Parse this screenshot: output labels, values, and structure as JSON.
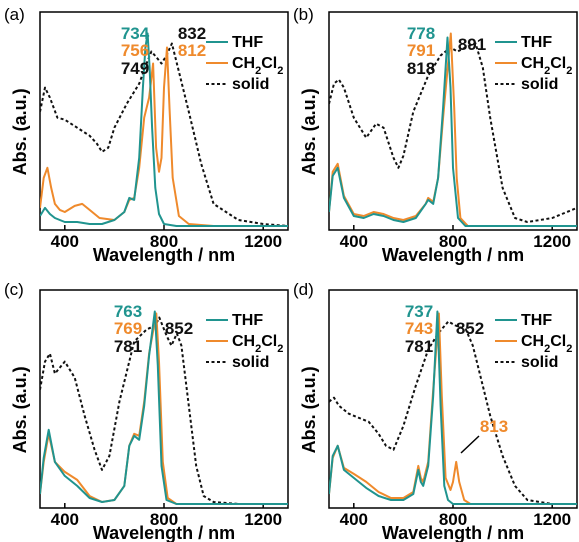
{
  "colors": {
    "thf": "#20948f",
    "ch2cl2": "#ef8a2c",
    "solid": "#111111"
  },
  "chart_data": [
    {
      "panel": "(a)",
      "type": "line",
      "xlabel": "Wavelength / nm",
      "ylabel": "Abs. (a.u.)",
      "xlim": [
        300,
        1300
      ],
      "xticks": [
        400,
        800,
        1200
      ],
      "legend": [
        "THF",
        "CH2Cl2",
        "solid"
      ],
      "peak_labels": [
        {
          "text": "734",
          "series": "THF"
        },
        {
          "text": "756",
          "series": "CH2Cl2"
        },
        {
          "text": "749",
          "series": "solid"
        },
        {
          "text": "832",
          "series": "solid"
        },
        {
          "text": "812",
          "series": "CH2Cl2"
        }
      ],
      "series": [
        {
          "name": "THF",
          "style": "solid",
          "x": [
            300,
            320,
            340,
            360,
            380,
            400,
            450,
            500,
            550,
            600,
            640,
            660,
            680,
            700,
            715,
            725,
            734,
            742,
            752,
            765,
            780,
            800,
            850,
            900,
            1000,
            1300
          ],
          "y": [
            0.06,
            0.1,
            0.07,
            0.05,
            0.04,
            0.03,
            0.03,
            0.02,
            0.02,
            0.04,
            0.08,
            0.15,
            0.14,
            0.35,
            0.7,
            0.9,
            0.97,
            0.8,
            0.5,
            0.2,
            0.07,
            0.02,
            0.01,
            0.01,
            0.01,
            0.01
          ]
        },
        {
          "name": "CH2Cl2",
          "style": "solid",
          "x": [
            300,
            315,
            330,
            345,
            360,
            380,
            400,
            440,
            470,
            500,
            540,
            600,
            640,
            660,
            680,
            700,
            720,
            740,
            756,
            768,
            780,
            790,
            800,
            812,
            822,
            835,
            860,
            900,
            1000,
            1300
          ],
          "y": [
            0.1,
            0.25,
            0.3,
            0.2,
            0.12,
            0.09,
            0.08,
            0.11,
            0.12,
            0.09,
            0.05,
            0.04,
            0.08,
            0.14,
            0.15,
            0.3,
            0.55,
            0.65,
            0.82,
            0.4,
            0.28,
            0.35,
            0.7,
            0.9,
            0.6,
            0.25,
            0.06,
            0.02,
            0.01,
            0.01
          ]
        },
        {
          "name": "solid",
          "style": "dashed",
          "x": [
            300,
            320,
            340,
            370,
            400,
            450,
            500,
            530,
            550,
            575,
            600,
            650,
            700,
            730,
            749,
            770,
            790,
            810,
            832,
            860,
            900,
            950,
            1000,
            1100,
            1200,
            1300
          ],
          "y": [
            0.58,
            0.7,
            0.65,
            0.55,
            0.54,
            0.5,
            0.46,
            0.42,
            0.38,
            0.4,
            0.5,
            0.62,
            0.72,
            0.82,
            0.88,
            0.85,
            0.82,
            0.86,
            0.92,
            0.78,
            0.58,
            0.32,
            0.12,
            0.04,
            0.02,
            0.01
          ]
        }
      ]
    },
    {
      "panel": "(b)",
      "type": "line",
      "xlabel": "Wavelength / nm",
      "ylabel": "Abs. (a.u.)",
      "xlim": [
        300,
        1300
      ],
      "xticks": [
        400,
        800,
        1200
      ],
      "legend": [
        "THF",
        "CH2Cl2",
        "solid"
      ],
      "peak_labels": [
        {
          "text": "778",
          "series": "THF"
        },
        {
          "text": "791",
          "series": "CH2Cl2"
        },
        {
          "text": "818",
          "series": "solid"
        },
        {
          "text": "891",
          "series": "solid"
        }
      ],
      "series": [
        {
          "name": "THF",
          "style": "solid",
          "x": [
            300,
            315,
            335,
            360,
            400,
            440,
            480,
            520,
            560,
            600,
            650,
            690,
            700,
            720,
            740,
            760,
            778,
            790,
            800,
            820,
            850,
            900,
            1000,
            1300
          ],
          "y": [
            0.08,
            0.26,
            0.3,
            0.15,
            0.06,
            0.05,
            0.07,
            0.06,
            0.04,
            0.03,
            0.05,
            0.12,
            0.14,
            0.12,
            0.25,
            0.6,
            0.95,
            0.7,
            0.3,
            0.05,
            0.01,
            0.01,
            0.01,
            0.01
          ]
        },
        {
          "name": "CH2Cl2",
          "style": "solid",
          "x": [
            300,
            315,
            335,
            360,
            400,
            440,
            480,
            520,
            560,
            600,
            650,
            690,
            700,
            720,
            740,
            760,
            791,
            805,
            815,
            830,
            860,
            900,
            1000,
            1300
          ],
          "y": [
            0.08,
            0.28,
            0.32,
            0.16,
            0.07,
            0.06,
            0.08,
            0.07,
            0.05,
            0.04,
            0.06,
            0.12,
            0.15,
            0.13,
            0.25,
            0.55,
            0.97,
            0.6,
            0.25,
            0.05,
            0.01,
            0.01,
            0.01,
            0.01
          ]
        },
        {
          "name": "solid",
          "style": "dashed",
          "x": [
            300,
            320,
            340,
            360,
            400,
            450,
            490,
            520,
            560,
            580,
            600,
            640,
            700,
            750,
            790,
            818,
            850,
            891,
            920,
            950,
            1000,
            1050,
            1100,
            1200,
            1300
          ],
          "y": [
            0.62,
            0.72,
            0.74,
            0.7,
            0.55,
            0.45,
            0.52,
            0.5,
            0.35,
            0.3,
            0.36,
            0.58,
            0.76,
            0.86,
            0.9,
            0.88,
            0.9,
            0.92,
            0.8,
            0.55,
            0.2,
            0.05,
            0.03,
            0.05,
            0.1
          ]
        }
      ]
    },
    {
      "panel": "(c)",
      "type": "line",
      "xlabel": "Wavelength / nm",
      "ylabel": "Abs. (a.u.)",
      "xlim": [
        300,
        1300
      ],
      "xticks": [
        400,
        800,
        1200
      ],
      "legend": [
        "THF",
        "CH2Cl2",
        "solid"
      ],
      "peak_labels": [
        {
          "text": "763",
          "series": "THF"
        },
        {
          "text": "769",
          "series": "CH2Cl2"
        },
        {
          "text": "781",
          "series": "solid"
        },
        {
          "text": "852",
          "series": "solid"
        }
      ],
      "series": [
        {
          "name": "THF",
          "style": "solid",
          "x": [
            300,
            315,
            335,
            360,
            400,
            450,
            500,
            550,
            600,
            640,
            660,
            680,
            700,
            720,
            740,
            763,
            775,
            790,
            810,
            850,
            900,
            1000,
            1300
          ],
          "y": [
            0.06,
            0.24,
            0.38,
            0.22,
            0.15,
            0.1,
            0.04,
            0.02,
            0.03,
            0.1,
            0.3,
            0.35,
            0.33,
            0.5,
            0.75,
            0.97,
            0.7,
            0.2,
            0.03,
            0.01,
            0.01,
            0.01,
            0.01
          ]
        },
        {
          "name": "CH2Cl2",
          "style": "solid",
          "x": [
            300,
            315,
            335,
            360,
            400,
            450,
            500,
            550,
            600,
            640,
            660,
            680,
            700,
            720,
            740,
            769,
            780,
            795,
            815,
            850,
            900,
            1000,
            1300
          ],
          "y": [
            0.06,
            0.22,
            0.36,
            0.22,
            0.17,
            0.13,
            0.05,
            0.02,
            0.03,
            0.1,
            0.3,
            0.36,
            0.35,
            0.52,
            0.76,
            0.96,
            0.72,
            0.22,
            0.04,
            0.01,
            0.01,
            0.01,
            0.01
          ]
        },
        {
          "name": "solid",
          "style": "dashed",
          "x": [
            300,
            320,
            340,
            360,
            400,
            440,
            480,
            520,
            550,
            580,
            620,
            680,
            730,
            765,
            781,
            810,
            830,
            852,
            870,
            900,
            930,
            960,
            1000,
            1100,
            1300
          ],
          "y": [
            0.58,
            0.72,
            0.76,
            0.66,
            0.72,
            0.64,
            0.45,
            0.28,
            0.18,
            0.25,
            0.52,
            0.82,
            0.88,
            0.9,
            0.94,
            0.85,
            0.8,
            0.86,
            0.8,
            0.5,
            0.2,
            0.05,
            0.02,
            0.01,
            0.01
          ]
        }
      ]
    },
    {
      "panel": "(d)",
      "type": "line",
      "xlabel": "Wavelength / nm",
      "ylabel": "Abs. (a.u.)",
      "xlim": [
        300,
        1300
      ],
      "xticks": [
        400,
        800,
        1200
      ],
      "legend": [
        "THF",
        "CH2Cl2",
        "solid"
      ],
      "peak_labels": [
        {
          "text": "737",
          "series": "THF"
        },
        {
          "text": "743",
          "series": "CH2Cl2"
        },
        {
          "text": "781",
          "series": "solid"
        },
        {
          "text": "852",
          "series": "solid"
        },
        {
          "text": "813",
          "series": "CH2Cl2"
        }
      ],
      "series": [
        {
          "name": "THF",
          "style": "solid",
          "x": [
            300,
            315,
            335,
            360,
            400,
            450,
            500,
            550,
            600,
            640,
            660,
            670,
            680,
            700,
            720,
            737,
            750,
            765,
            780,
            800,
            850,
            900,
            1000,
            1300
          ],
          "y": [
            0.06,
            0.25,
            0.3,
            0.18,
            0.14,
            0.09,
            0.05,
            0.03,
            0.03,
            0.06,
            0.18,
            0.12,
            0.1,
            0.2,
            0.55,
            0.97,
            0.5,
            0.1,
            0.03,
            0.01,
            0.01,
            0.01,
            0.01,
            0.01
          ]
        },
        {
          "name": "CH2Cl2",
          "style": "solid",
          "x": [
            300,
            315,
            335,
            360,
            400,
            450,
            500,
            550,
            600,
            640,
            660,
            670,
            680,
            700,
            720,
            743,
            755,
            770,
            790,
            800,
            813,
            825,
            845,
            870,
            900,
            1000,
            1300
          ],
          "y": [
            0.06,
            0.24,
            0.3,
            0.19,
            0.16,
            0.12,
            0.07,
            0.04,
            0.04,
            0.07,
            0.2,
            0.14,
            0.12,
            0.22,
            0.58,
            0.96,
            0.55,
            0.14,
            0.08,
            0.12,
            0.22,
            0.12,
            0.03,
            0.01,
            0.01,
            0.01,
            0.01
          ]
        },
        {
          "name": "solid",
          "style": "dashed",
          "x": [
            300,
            320,
            340,
            380,
            420,
            460,
            500,
            530,
            560,
            600,
            650,
            700,
            740,
            781,
            810,
            852,
            880,
            900,
            950,
            1000,
            1050,
            1100,
            1200,
            1300
          ],
          "y": [
            0.52,
            0.54,
            0.5,
            0.46,
            0.44,
            0.42,
            0.36,
            0.3,
            0.28,
            0.4,
            0.6,
            0.78,
            0.86,
            0.92,
            0.9,
            0.88,
            0.8,
            0.7,
            0.45,
            0.25,
            0.1,
            0.03,
            0.01,
            0.01
          ]
        }
      ]
    }
  ]
}
